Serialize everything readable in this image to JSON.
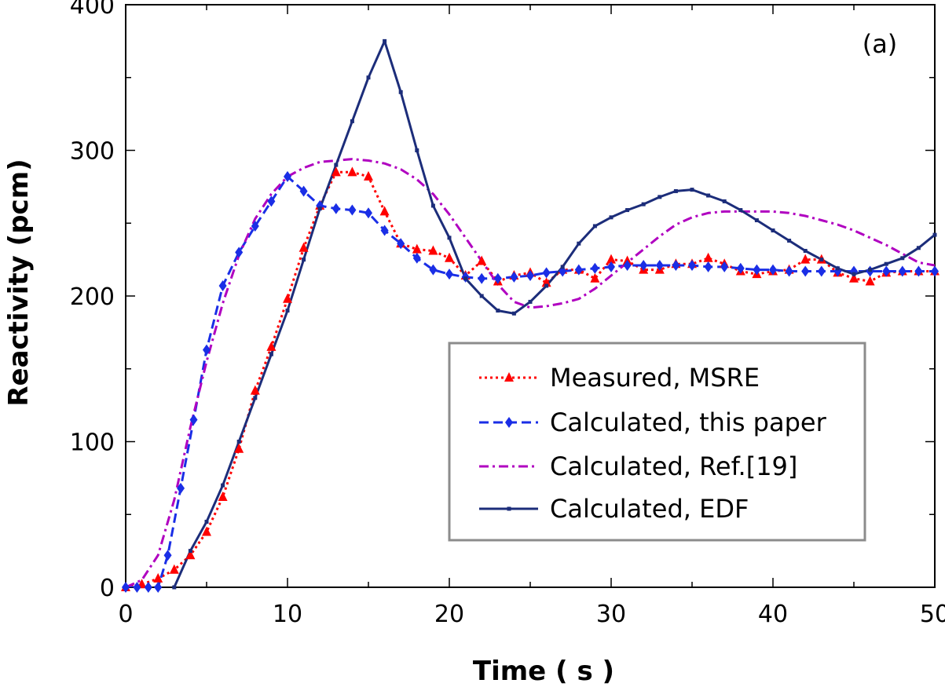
{
  "chart_data": {
    "type": "line",
    "panel_label": "(a)",
    "xlabel": "Time ( s )",
    "ylabel": "Reactivity (pcm)",
    "xlim": [
      0,
      50
    ],
    "ylim": [
      0,
      400
    ],
    "xticks": [
      0,
      10,
      20,
      30,
      40,
      50
    ],
    "yticks": [
      0,
      100,
      200,
      300,
      400
    ],
    "grid": false,
    "legend_position": "lower-right",
    "series": [
      {
        "name": "Measured, MSRE",
        "color": "#ff0000",
        "line_style": "dotted",
        "marker": "triangle",
        "points": [
          [
            0,
            0
          ],
          [
            1,
            2
          ],
          [
            2,
            6
          ],
          [
            3,
            12
          ],
          [
            4,
            22
          ],
          [
            5,
            38
          ],
          [
            6,
            62
          ],
          [
            7,
            95
          ],
          [
            8,
            135
          ],
          [
            9,
            165
          ],
          [
            10,
            198
          ],
          [
            11,
            233
          ],
          [
            12,
            262
          ],
          [
            13,
            285
          ],
          [
            14,
            285
          ],
          [
            15,
            282
          ],
          [
            16,
            258
          ],
          [
            17,
            236
          ],
          [
            18,
            232
          ],
          [
            19,
            231
          ],
          [
            20,
            226
          ],
          [
            21,
            214
          ],
          [
            22,
            224
          ],
          [
            23,
            210
          ],
          [
            24,
            214
          ],
          [
            25,
            216
          ],
          [
            26,
            209
          ],
          [
            27,
            218
          ],
          [
            28,
            218
          ],
          [
            29,
            212
          ],
          [
            30,
            225
          ],
          [
            31,
            224
          ],
          [
            32,
            218
          ],
          [
            33,
            218
          ],
          [
            34,
            222
          ],
          [
            35,
            222
          ],
          [
            36,
            226
          ],
          [
            37,
            222
          ],
          [
            38,
            217
          ],
          [
            39,
            215
          ],
          [
            40,
            217
          ],
          [
            41,
            218
          ],
          [
            42,
            225
          ],
          [
            43,
            225
          ],
          [
            44,
            216
          ],
          [
            45,
            212
          ],
          [
            46,
            210
          ],
          [
            47,
            216
          ],
          [
            48,
            217
          ],
          [
            49,
            217
          ],
          [
            50,
            217
          ]
        ]
      },
      {
        "name": "Calculated, this paper",
        "color": "#1a2ee6",
        "line_style": "dashed",
        "marker": "diamond",
        "points": [
          [
            0,
            0
          ],
          [
            0.7,
            0
          ],
          [
            1.4,
            0
          ],
          [
            2,
            0
          ],
          [
            2.6,
            22
          ],
          [
            3.4,
            68
          ],
          [
            4.2,
            115
          ],
          [
            5,
            163
          ],
          [
            6,
            207
          ],
          [
            7,
            230
          ],
          [
            8,
            248
          ],
          [
            9,
            265
          ],
          [
            10,
            282
          ],
          [
            11,
            272
          ],
          [
            12,
            262
          ],
          [
            13,
            260
          ],
          [
            14,
            259
          ],
          [
            15,
            257
          ],
          [
            16,
            245
          ],
          [
            17,
            236
          ],
          [
            18,
            226
          ],
          [
            19,
            218
          ],
          [
            20,
            215
          ],
          [
            21,
            213
          ],
          [
            22,
            212
          ],
          [
            23,
            212
          ],
          [
            24,
            213
          ],
          [
            25,
            214
          ],
          [
            26,
            216
          ],
          [
            27,
            217
          ],
          [
            28,
            218
          ],
          [
            29,
            219
          ],
          [
            30,
            220
          ],
          [
            31,
            221
          ],
          [
            32,
            221
          ],
          [
            33,
            221
          ],
          [
            34,
            221
          ],
          [
            35,
            221
          ],
          [
            36,
            220
          ],
          [
            37,
            220
          ],
          [
            38,
            219
          ],
          [
            39,
            218
          ],
          [
            40,
            218
          ],
          [
            41,
            217
          ],
          [
            42,
            217
          ],
          [
            43,
            217
          ],
          [
            44,
            217
          ],
          [
            45,
            217
          ],
          [
            46,
            217
          ],
          [
            47,
            217
          ],
          [
            48,
            217
          ],
          [
            49,
            217
          ],
          [
            50,
            217
          ]
        ]
      },
      {
        "name": "Calculated, Ref.[19]",
        "color": "#b000c0",
        "line_style": "dash-dot",
        "marker": "none",
        "points": [
          [
            0,
            0
          ],
          [
            1,
            5
          ],
          [
            2,
            22
          ],
          [
            3,
            60
          ],
          [
            4,
            110
          ],
          [
            5,
            155
          ],
          [
            6,
            195
          ],
          [
            7,
            228
          ],
          [
            8,
            253
          ],
          [
            9,
            270
          ],
          [
            10,
            282
          ],
          [
            11,
            288
          ],
          [
            12,
            292
          ],
          [
            13,
            293
          ],
          [
            14,
            294
          ],
          [
            15,
            293
          ],
          [
            16,
            291
          ],
          [
            17,
            287
          ],
          [
            18,
            280
          ],
          [
            19,
            270
          ],
          [
            20,
            256
          ],
          [
            21,
            240
          ],
          [
            22,
            224
          ],
          [
            23,
            208
          ],
          [
            24,
            196
          ],
          [
            25,
            192
          ],
          [
            26,
            193
          ],
          [
            27,
            195
          ],
          [
            28,
            198
          ],
          [
            29,
            205
          ],
          [
            30,
            214
          ],
          [
            31,
            223
          ],
          [
            32,
            232
          ],
          [
            33,
            241
          ],
          [
            34,
            249
          ],
          [
            35,
            254
          ],
          [
            36,
            257
          ],
          [
            37,
            258
          ],
          [
            38,
            258
          ],
          [
            39,
            258
          ],
          [
            40,
            258
          ],
          [
            41,
            257
          ],
          [
            42,
            255
          ],
          [
            43,
            252
          ],
          [
            44,
            249
          ],
          [
            45,
            245
          ],
          [
            46,
            240
          ],
          [
            47,
            235
          ],
          [
            48,
            229
          ],
          [
            49,
            223
          ],
          [
            50,
            221
          ]
        ]
      },
      {
        "name": "Calculated, EDF",
        "color": "#1c2d7a",
        "line_style": "solid",
        "marker": "small-dot",
        "points": [
          [
            3,
            0
          ],
          [
            4,
            25
          ],
          [
            5,
            45
          ],
          [
            6,
            70
          ],
          [
            7,
            100
          ],
          [
            8,
            130
          ],
          [
            9,
            160
          ],
          [
            10,
            190
          ],
          [
            11,
            225
          ],
          [
            12,
            260
          ],
          [
            13,
            290
          ],
          [
            14,
            320
          ],
          [
            15,
            350
          ],
          [
            16,
            375
          ],
          [
            17,
            340
          ],
          [
            18,
            300
          ],
          [
            19,
            262
          ],
          [
            20,
            240
          ],
          [
            21,
            212
          ],
          [
            22,
            200
          ],
          [
            23,
            190
          ],
          [
            24,
            188
          ],
          [
            25,
            196
          ],
          [
            26,
            207
          ],
          [
            27,
            220
          ],
          [
            28,
            236
          ],
          [
            29,
            248
          ],
          [
            30,
            254
          ],
          [
            31,
            259
          ],
          [
            32,
            263
          ],
          [
            33,
            268
          ],
          [
            34,
            272
          ],
          [
            35,
            273
          ],
          [
            36,
            269
          ],
          [
            37,
            265
          ],
          [
            38,
            259
          ],
          [
            39,
            252
          ],
          [
            40,
            245
          ],
          [
            41,
            238
          ],
          [
            42,
            231
          ],
          [
            43,
            225
          ],
          [
            44,
            219
          ],
          [
            45,
            215
          ],
          [
            46,
            218
          ],
          [
            47,
            222
          ],
          [
            48,
            226
          ],
          [
            49,
            233
          ],
          [
            50,
            242
          ]
        ]
      }
    ]
  }
}
